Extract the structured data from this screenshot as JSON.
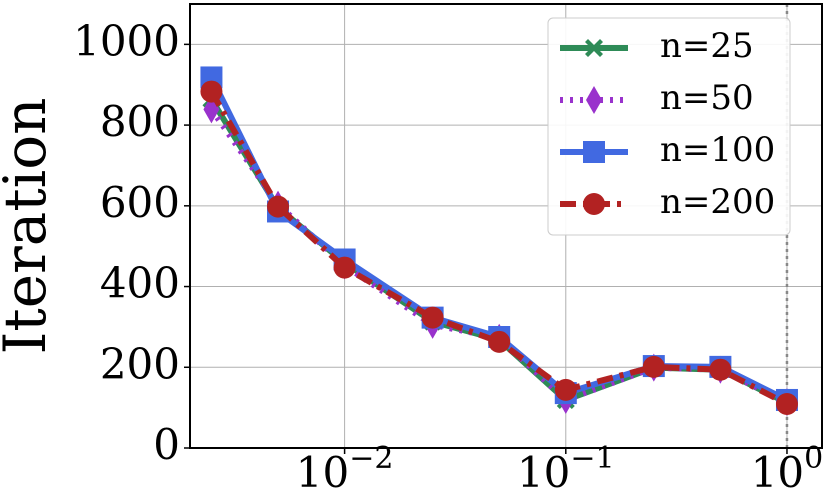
{
  "chart_data": {
    "type": "line",
    "y_label": "Iteration",
    "x": [
      0.0025,
      0.005,
      0.01,
      0.025,
      0.05,
      0.1,
      0.25,
      0.5,
      1
    ],
    "series": [
      {
        "name": "n=25",
        "color": "#2e8b57",
        "marker": "x",
        "dash": "solid",
        "values": [
          864,
          595,
          459,
          313,
          268,
          119,
          199,
          194,
          112
        ]
      },
      {
        "name": "n=50",
        "color": "#9932cc",
        "marker": "diamond",
        "dash": "dotted",
        "values": [
          839,
          603,
          452,
          305,
          273,
          119,
          199,
          194,
          114
        ]
      },
      {
        "name": "n=100",
        "color": "#4169e1",
        "marker": "square",
        "dash": "solid",
        "values": [
          918,
          586,
          467,
          323,
          275,
          136,
          203,
          201,
          119
        ]
      },
      {
        "name": "n=200",
        "color": "#b22222",
        "marker": "circle",
        "dash": "dashdot",
        "values": [
          883,
          598,
          447,
          323,
          263,
          144,
          201,
          194,
          109
        ]
      }
    ],
    "xscale": "log",
    "xlim": [
      0.002,
      1.44
    ],
    "ylim": [
      0,
      1100
    ],
    "xticks": [
      {
        "value": 0.01,
        "label": "10",
        "exponent": "−2"
      },
      {
        "value": 0.1,
        "label": "10",
        "exponent": "−1"
      },
      {
        "value": 1,
        "label": "10",
        "exponent": "0"
      }
    ],
    "yticks": [
      0,
      200,
      400,
      600,
      800,
      1000
    ],
    "grid": true,
    "vline": 1,
    "legend": "upper right"
  }
}
